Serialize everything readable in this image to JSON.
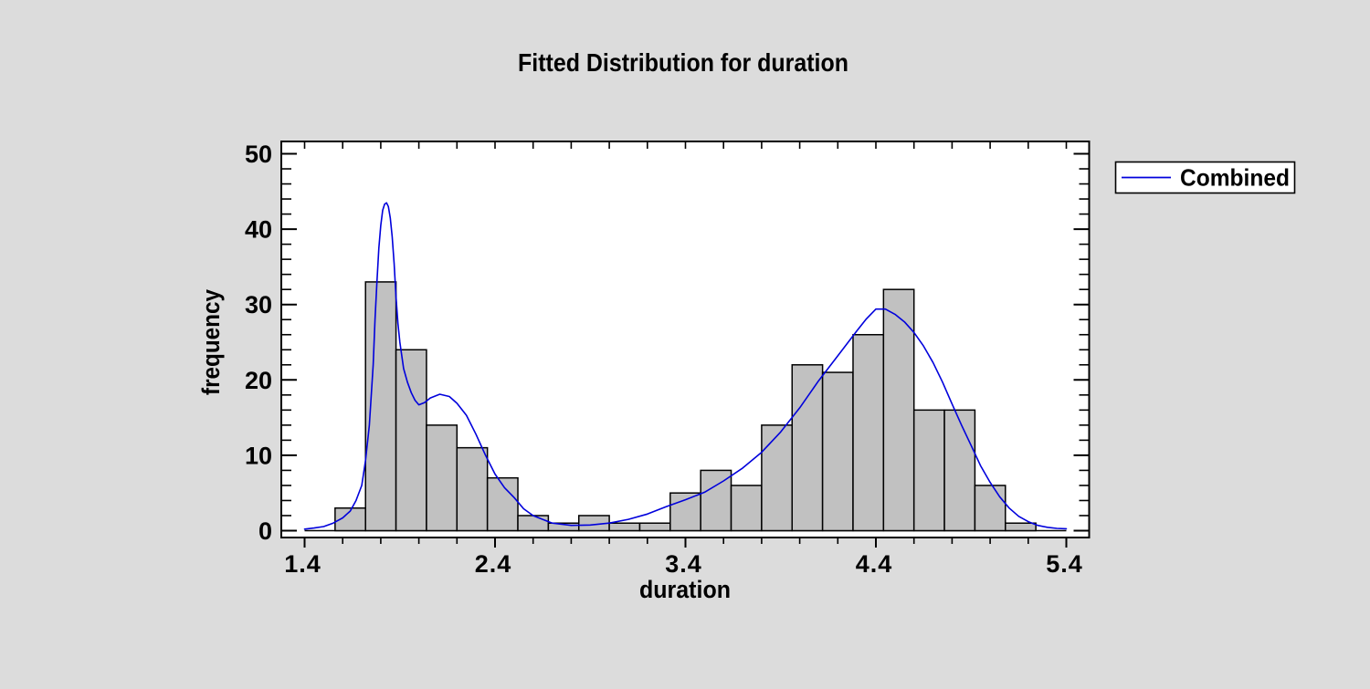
{
  "page": {
    "background_color": "#DCDCDC",
    "plot_background_color": "#FFFFFF",
    "frame_color": "#000000"
  },
  "chart_data": {
    "type": "bar",
    "subtype": "histogram_with_fitted_density_curve",
    "title": "Fitted Distribution for duration",
    "xlabel": "duration",
    "ylabel": "frequency",
    "xlim": [
      1.4,
      5.4
    ],
    "ylim": [
      0,
      50
    ],
    "grid": false,
    "x_major_ticks": [
      1.4,
      2.4,
      3.4,
      4.4,
      5.4
    ],
    "x_minor_tick_step": 0.2,
    "y_major_ticks": [
      0,
      10,
      20,
      30,
      40,
      50
    ],
    "y_minor_tick_step": 2,
    "legend_position": "top-right-outside",
    "histogram": {
      "bin_start": 1.4,
      "bin_width": 0.16,
      "counts": [
        0,
        3,
        33,
        24,
        14,
        11,
        7,
        2,
        1,
        2,
        1,
        1,
        5,
        8,
        6,
        14,
        22,
        21,
        26,
        32,
        16,
        16,
        6,
        1,
        0
      ],
      "total_n": 272,
      "bar_fill": "#C1C1C1",
      "bar_stroke": "#000000"
    },
    "series": [
      {
        "name": "Combined",
        "type": "line",
        "color": "#0000DC",
        "points": [
          [
            1.4,
            0.2
          ],
          [
            1.45,
            0.35
          ],
          [
            1.5,
            0.55
          ],
          [
            1.55,
            1.0
          ],
          [
            1.6,
            1.7
          ],
          [
            1.64,
            2.6
          ],
          [
            1.67,
            4.0
          ],
          [
            1.7,
            6.0
          ],
          [
            1.72,
            9.3
          ],
          [
            1.74,
            14.0
          ],
          [
            1.75,
            18.0
          ],
          [
            1.76,
            22.0
          ],
          [
            1.77,
            28.0
          ],
          [
            1.78,
            33.0
          ],
          [
            1.79,
            37.5
          ],
          [
            1.8,
            40.5
          ],
          [
            1.81,
            42.5
          ],
          [
            1.82,
            43.3
          ],
          [
            1.83,
            43.5
          ],
          [
            1.84,
            43.0
          ],
          [
            1.85,
            41.5
          ],
          [
            1.86,
            39.0
          ],
          [
            1.87,
            35.5
          ],
          [
            1.88,
            31.0
          ],
          [
            1.89,
            27.5
          ],
          [
            1.9,
            25.0
          ],
          [
            1.92,
            21.5
          ],
          [
            1.94,
            19.7
          ],
          [
            1.96,
            18.3
          ],
          [
            1.98,
            17.3
          ],
          [
            2.0,
            16.7
          ],
          [
            2.03,
            17.0
          ],
          [
            2.06,
            17.6
          ],
          [
            2.11,
            18.1
          ],
          [
            2.16,
            17.8
          ],
          [
            2.2,
            16.9
          ],
          [
            2.25,
            15.3
          ],
          [
            2.3,
            12.8
          ],
          [
            2.35,
            10.0
          ],
          [
            2.4,
            7.5
          ],
          [
            2.45,
            5.7
          ],
          [
            2.5,
            4.4
          ],
          [
            2.55,
            2.9
          ],
          [
            2.6,
            2.0
          ],
          [
            2.65,
            1.5
          ],
          [
            2.7,
            1.0
          ],
          [
            2.8,
            0.7
          ],
          [
            2.9,
            0.75
          ],
          [
            3.0,
            1.0
          ],
          [
            3.1,
            1.5
          ],
          [
            3.2,
            2.2
          ],
          [
            3.3,
            3.2
          ],
          [
            3.4,
            4.1
          ],
          [
            3.5,
            5.1
          ],
          [
            3.6,
            6.6
          ],
          [
            3.7,
            8.3
          ],
          [
            3.8,
            10.4
          ],
          [
            3.9,
            13.1
          ],
          [
            4.0,
            16.3
          ],
          [
            4.1,
            19.9
          ],
          [
            4.2,
            23.2
          ],
          [
            4.3,
            26.5
          ],
          [
            4.35,
            28.1
          ],
          [
            4.4,
            29.4
          ],
          [
            4.45,
            29.4
          ],
          [
            4.5,
            28.7
          ],
          [
            4.55,
            27.7
          ],
          [
            4.6,
            26.3
          ],
          [
            4.65,
            24.5
          ],
          [
            4.7,
            22.3
          ],
          [
            4.75,
            19.7
          ],
          [
            4.8,
            16.8
          ],
          [
            4.85,
            14.0
          ],
          [
            4.9,
            11.3
          ],
          [
            4.95,
            8.6
          ],
          [
            5.0,
            6.4
          ],
          [
            5.05,
            4.5
          ],
          [
            5.1,
            3.0
          ],
          [
            5.15,
            1.9
          ],
          [
            5.2,
            1.2
          ],
          [
            5.25,
            0.7
          ],
          [
            5.3,
            0.45
          ],
          [
            5.35,
            0.3
          ],
          [
            5.4,
            0.25
          ]
        ]
      }
    ]
  },
  "legend": {
    "items": [
      {
        "label": "Combined",
        "color": "#0000DC"
      }
    ]
  }
}
